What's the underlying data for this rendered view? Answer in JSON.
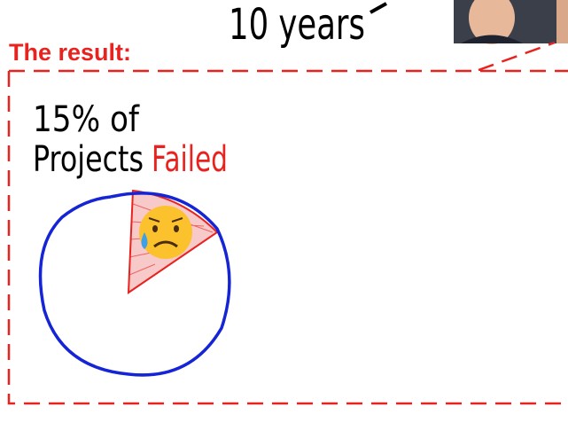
{
  "header": {
    "title": "10 years"
  },
  "result": {
    "label": "The result:",
    "line1": "15% of",
    "line2": "Projects",
    "highlight": "Failed"
  }
}
